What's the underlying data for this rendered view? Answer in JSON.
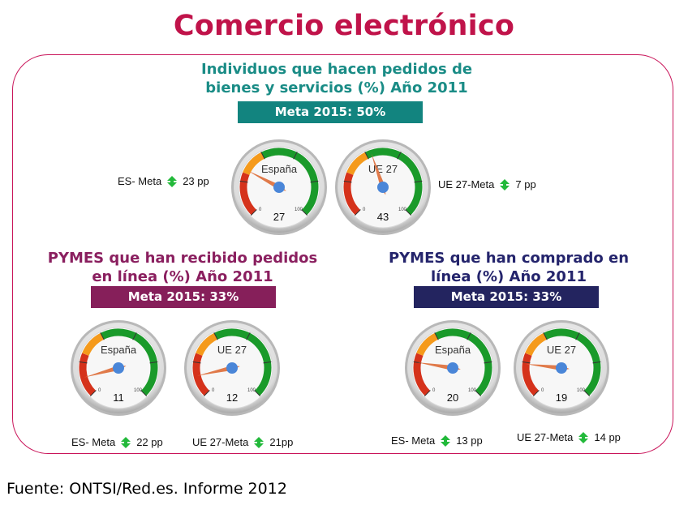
{
  "title": "Comercio electrónico",
  "section_individuals": {
    "title_line1": "Individuos que hacen pedidos de",
    "title_line2": "bienes y servicios (%) Año 2011",
    "goal": "Meta 2015: 50%",
    "gauge_es": {
      "label": "España",
      "value": 27,
      "scale_min": "0",
      "scale_max": "100"
    },
    "gauge_ue": {
      "label": "UE 27",
      "value": 43,
      "scale_min": "0",
      "scale_max": "100"
    },
    "es_gap": {
      "label": "ES- Meta",
      "value": "23 pp"
    },
    "ue_gap": {
      "label": "UE 27-Meta",
      "value": "7 pp"
    }
  },
  "section_sme_received": {
    "title_line1": "PYMES que han recibido pedidos",
    "title_line2": "en línea (%) Año 2011",
    "goal": "Meta 2015: 33%",
    "gauge_es": {
      "label": "España",
      "value": 11,
      "scale_min": "0",
      "scale_max": "100"
    },
    "gauge_ue": {
      "label": "UE 27",
      "value": 12,
      "scale_min": "0",
      "scale_max": "100"
    },
    "es_gap": {
      "label": "ES- Meta",
      "value": "22 pp"
    },
    "ue_gap": {
      "label": "UE 27-Meta",
      "value": "21pp"
    }
  },
  "section_sme_bought": {
    "title_line1": "PYMES que han comprado en",
    "title_line2": "línea (%) Año 2011",
    "goal": "Meta 2015: 33%",
    "gauge_es": {
      "label": "España",
      "value": 20,
      "scale_min": "0",
      "scale_max": "100"
    },
    "gauge_ue": {
      "label": "UE 27",
      "value": 19,
      "scale_min": "0",
      "scale_max": "100"
    },
    "es_gap": {
      "label": "ES- Meta",
      "value": "13 pp"
    },
    "ue_gap": {
      "label": "UE 27-Meta",
      "value": "14 pp"
    }
  },
  "source": "Fuente: ONTSI/Red.es. Informe 2012",
  "colors": {
    "title": "#c0134a",
    "frame": "#c9155a",
    "teal": "#12847f",
    "purple": "#861f5a",
    "navy": "#23245f",
    "gauge_red": "#d5321b",
    "gauge_orange": "#f59a1b",
    "gauge_green": "#1a9a2a",
    "needle": "#e07a4a",
    "hub": "#4a86d8",
    "arrow_green": "#22b93a"
  },
  "icons": {
    "gap": "up-down-arrow-icon"
  }
}
